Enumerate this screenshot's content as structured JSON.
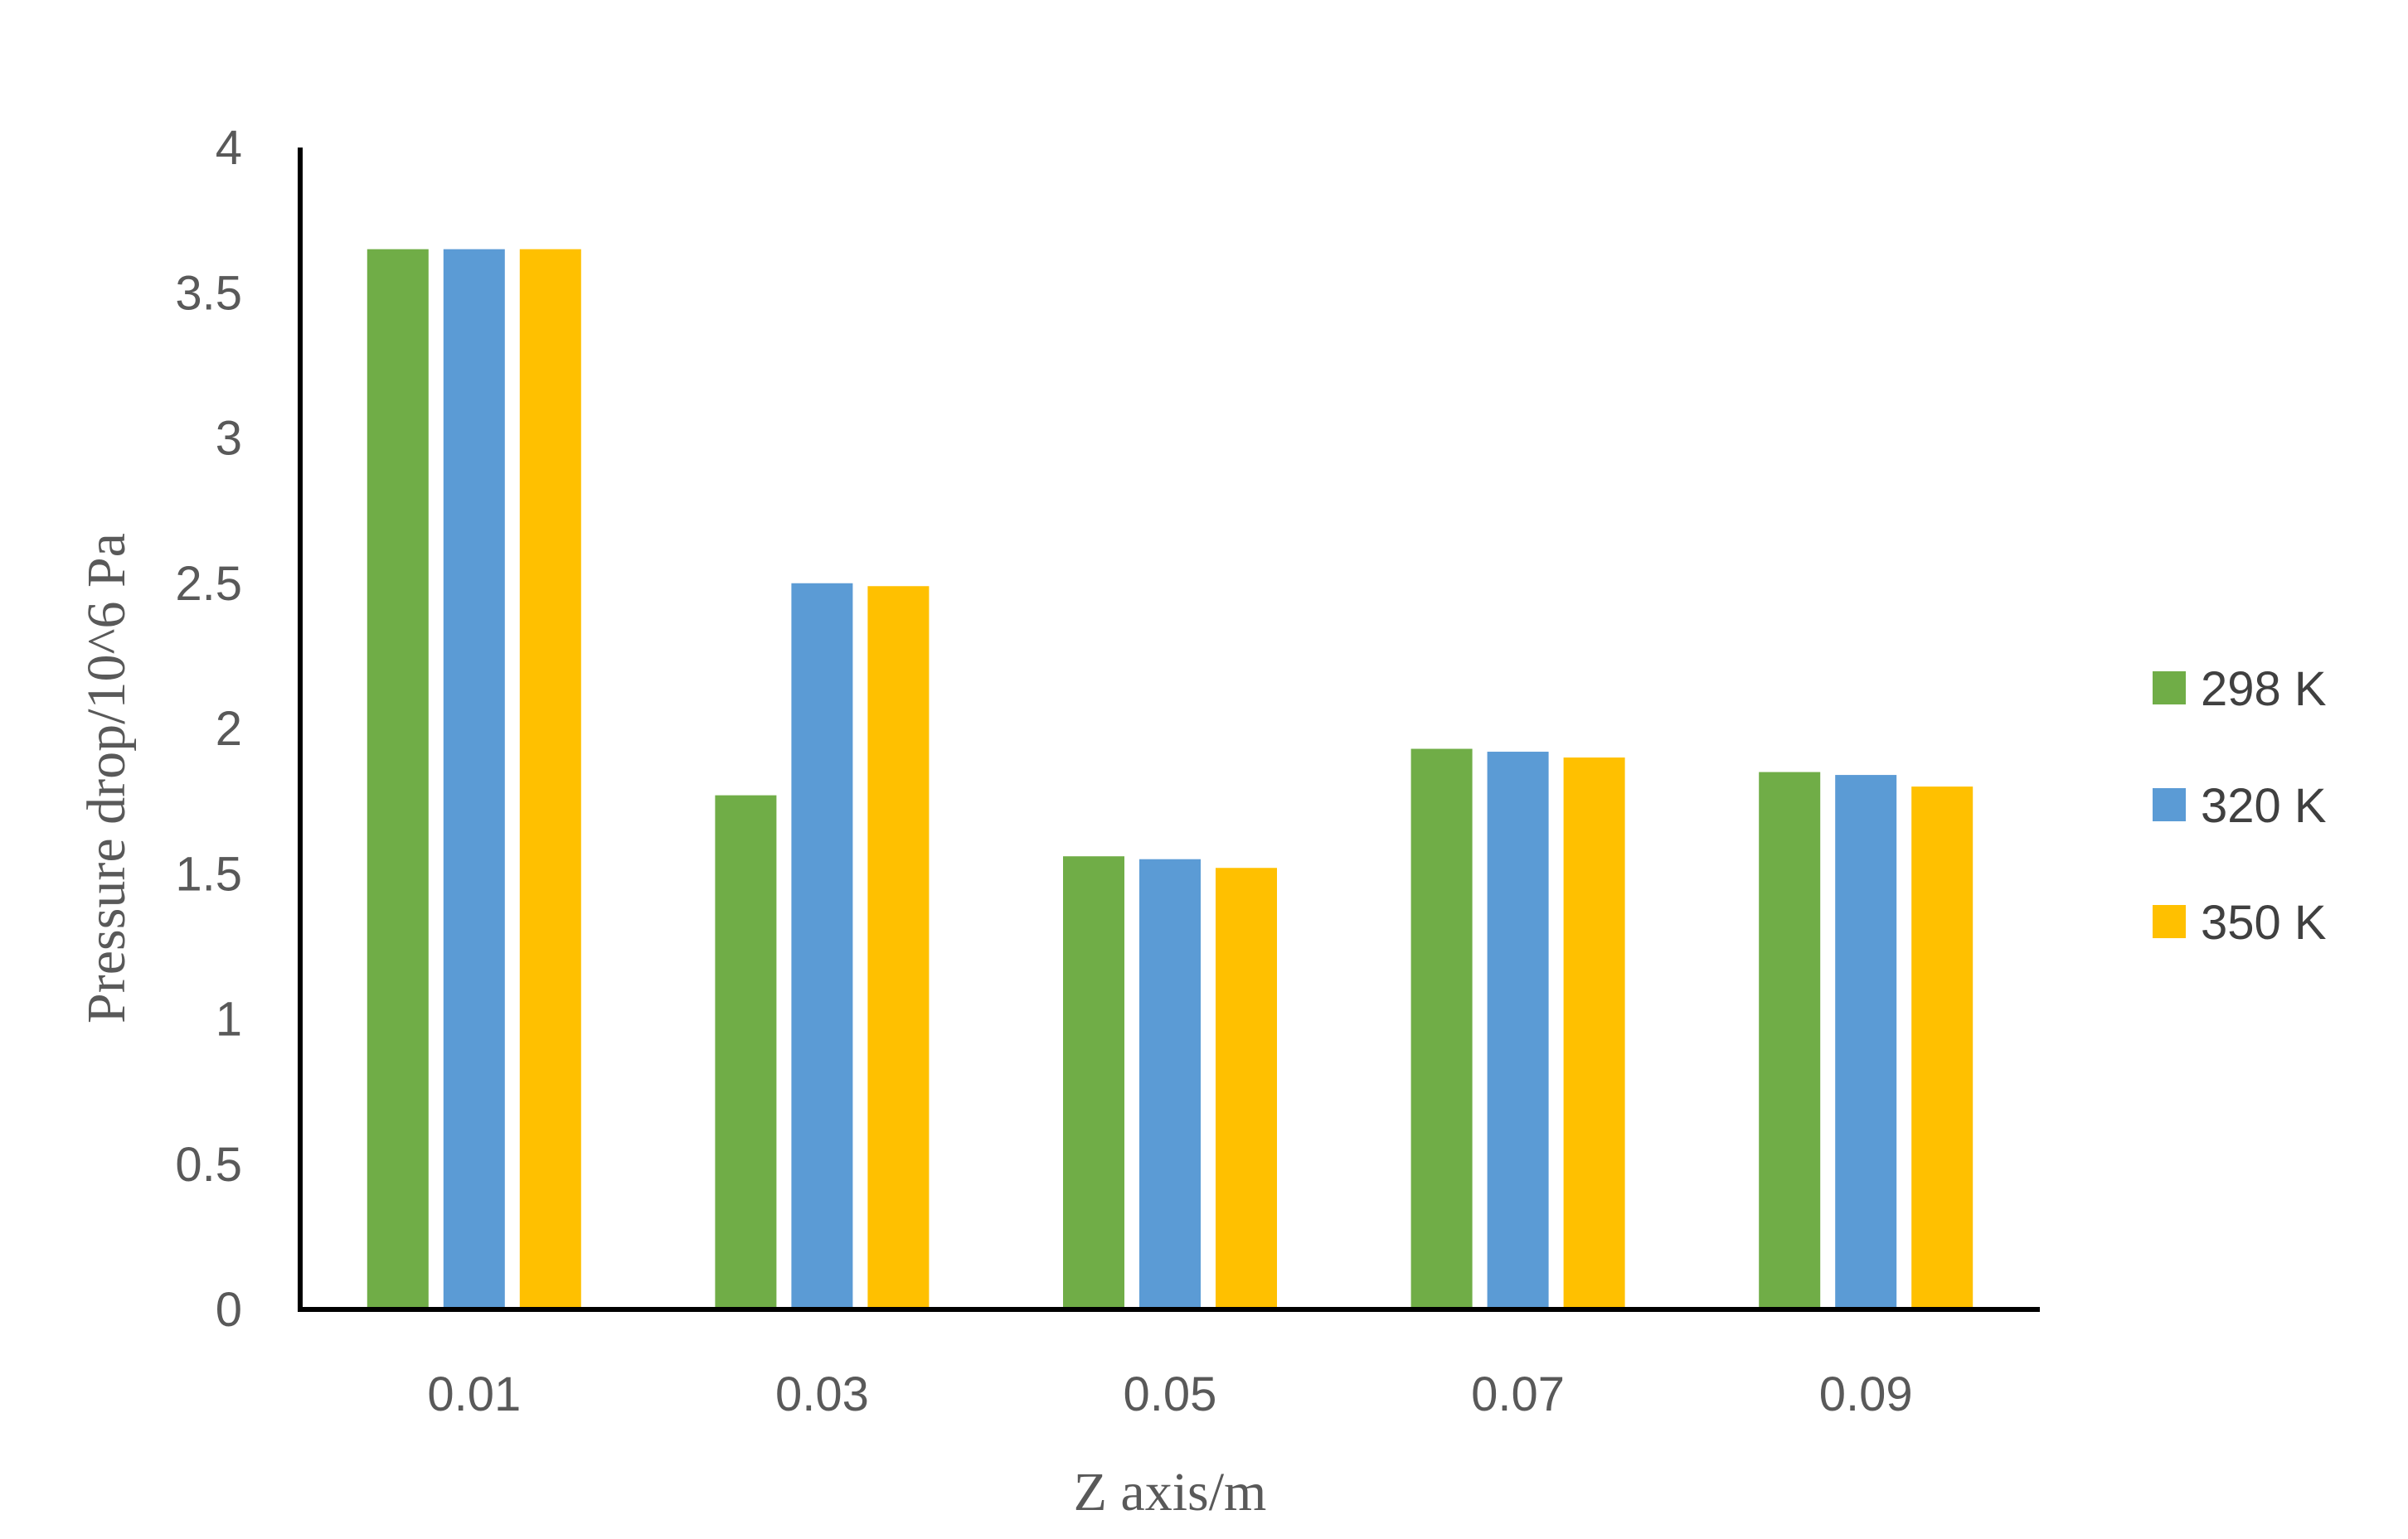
{
  "chart_data": {
    "type": "bar",
    "title": "",
    "xlabel": "Z axis/m",
    "ylabel": "Pressure drop/10^6 Pa",
    "categories": [
      "0.01",
      "0.03",
      "0.05",
      "0.07",
      "0.09"
    ],
    "ylim": [
      0,
      4
    ],
    "yticks": [
      "0",
      "0.5",
      "1",
      "1.5",
      "2",
      "2.5",
      "3",
      "3.5",
      "4"
    ],
    "grid": false,
    "legend_position": "right",
    "series": [
      {
        "name": "298 K",
        "color": "#70AD47",
        "values": [
          3.65,
          1.77,
          1.56,
          1.93,
          1.85
        ]
      },
      {
        "name": "320 K",
        "color": "#5B9BD5",
        "values": [
          3.65,
          2.5,
          1.55,
          1.92,
          1.84
        ]
      },
      {
        "name": "350 K",
        "color": "#FFC000",
        "values": [
          3.65,
          2.49,
          1.52,
          1.9,
          1.8
        ]
      }
    ]
  }
}
